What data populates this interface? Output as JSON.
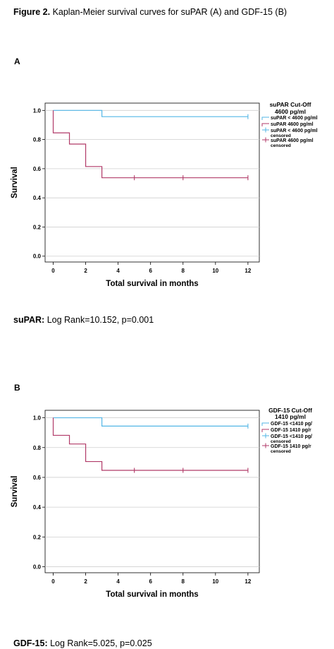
{
  "figure": {
    "caption_bold": "Figure 2.",
    "caption_rest": " Kaplan-Meier survival curves for suPAR (A) and GDF-15 (B)"
  },
  "chart_data": [
    {
      "type": "line",
      "panel": "A",
      "xlabel": "Total survival in months",
      "ylabel": "Survival",
      "xticks": [
        0,
        2,
        4,
        6,
        8,
        10,
        12
      ],
      "yticks": [
        "0.0",
        "0.2",
        "0.4",
        "0.6",
        "0.8",
        "1.0"
      ],
      "xlim": [
        -0.5,
        12.7
      ],
      "ylim": [
        -0.04,
        1.05
      ],
      "grid": "horizontal",
      "legend_position": "top-right",
      "legend_title": [
        "suPAR Cut-Off",
        "4600 pg/ml"
      ],
      "legend_items": [
        {
          "label": "suPAR < 4600 pg/ml",
          "marker": "step",
          "color": "#53b6e6"
        },
        {
          "label": "suPAR  4600 pg/ml",
          "marker": "step",
          "color": "#b13a68"
        },
        {
          "label": "suPAR < 4600 pg/ml",
          "label2": "censored",
          "marker": "censor",
          "color": "#53b6e6"
        },
        {
          "label": "suPAR  4600 pg/ml",
          "label2": "censored",
          "marker": "censor",
          "color": "#b13a68"
        }
      ],
      "series": [
        {
          "color": "#53b6e6",
          "steps": [
            [
              0,
              1.0
            ],
            [
              3,
              0.957
            ],
            [
              12,
              0.957
            ]
          ],
          "censored": [
            [
              12,
              0.957
            ]
          ]
        },
        {
          "color": "#b13a68",
          "steps": [
            [
              0,
              1.0
            ],
            [
              0,
              0.846
            ],
            [
              1,
              0.769
            ],
            [
              2,
              0.615
            ],
            [
              3,
              0.538
            ],
            [
              12,
              0.538
            ]
          ],
          "censored": [
            [
              5,
              0.538
            ],
            [
              8,
              0.538
            ],
            [
              12,
              0.538
            ]
          ]
        }
      ]
    },
    {
      "type": "line",
      "panel": "B",
      "xlabel": "Total survival in months",
      "ylabel": "Survival",
      "xticks": [
        0,
        2,
        4,
        6,
        8,
        10,
        12
      ],
      "yticks": [
        "0.0",
        "0.2",
        "0.4",
        "0.6",
        "0.8",
        "1.0"
      ],
      "xlim": [
        -0.5,
        12.7
      ],
      "ylim": [
        -0.04,
        1.05
      ],
      "grid": "horizontal",
      "legend_position": "top-right",
      "legend_title": [
        "GDF-15 Cut-Off",
        "1410 pg/ml"
      ],
      "legend_items": [
        {
          "label": "GDF-15 <1410 pg/",
          "marker": "step",
          "color": "#53b6e6"
        },
        {
          "label": "GDF-15 1410 pg/r",
          "marker": "step",
          "color": "#b13a68"
        },
        {
          "label": "GDF-15 <1410 pg/",
          "label2": "censored",
          "marker": "censor",
          "color": "#53b6e6"
        },
        {
          "label": "GDF-15 1410 pg/r",
          "label2": "censored",
          "marker": "censor",
          "color": "#b13a68"
        }
      ],
      "series": [
        {
          "color": "#53b6e6",
          "steps": [
            [
              0,
              1.0
            ],
            [
              3,
              0.944
            ],
            [
              12,
              0.944
            ]
          ],
          "censored": [
            [
              12,
              0.944
            ]
          ]
        },
        {
          "color": "#b13a68",
          "steps": [
            [
              0,
              1.0
            ],
            [
              0,
              0.882
            ],
            [
              1,
              0.824
            ],
            [
              2,
              0.706
            ],
            [
              3,
              0.647
            ],
            [
              12,
              0.647
            ]
          ],
          "censored": [
            [
              5,
              0.647
            ],
            [
              8,
              0.647
            ],
            [
              12,
              0.647
            ]
          ]
        }
      ]
    }
  ],
  "stats": {
    "a_bold": "suPAR:",
    "a_text": " Log Rank=10.152, p=0.001",
    "b_bold": "GDF-15:",
    "b_text": " Log Rank=5.025, p=0.025"
  }
}
